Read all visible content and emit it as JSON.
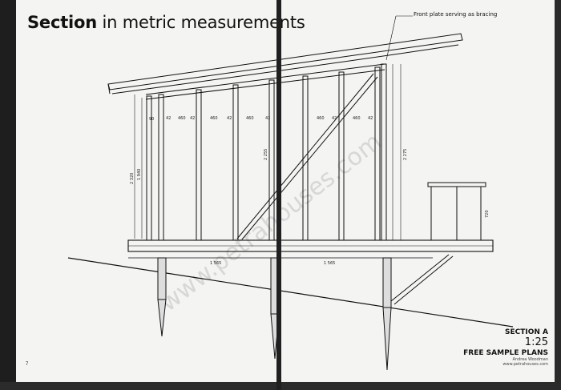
{
  "title": {
    "bold": "Section",
    "rest": " in metric measurements"
  },
  "annotation": "Front plate serving as bracing",
  "caption": {
    "section": "SECTION A",
    "scale": "1:25",
    "free": "FREE SAMPLE PLANS",
    "line1": "Andrea Woodman",
    "line2": "www.petrahouses.com"
  },
  "page_number": "7",
  "watermark": "www.petrahouses.com",
  "dimensions": {
    "spacing": [
      "90",
      "42",
      "460",
      "42",
      "460",
      "42",
      "460",
      "42",
      "460",
      "42",
      "460",
      "42"
    ],
    "heights": [
      "2 320",
      "1 940",
      "2 255",
      "2 275"
    ],
    "rail": "720",
    "bays": [
      "1 565",
      "1 565"
    ]
  }
}
